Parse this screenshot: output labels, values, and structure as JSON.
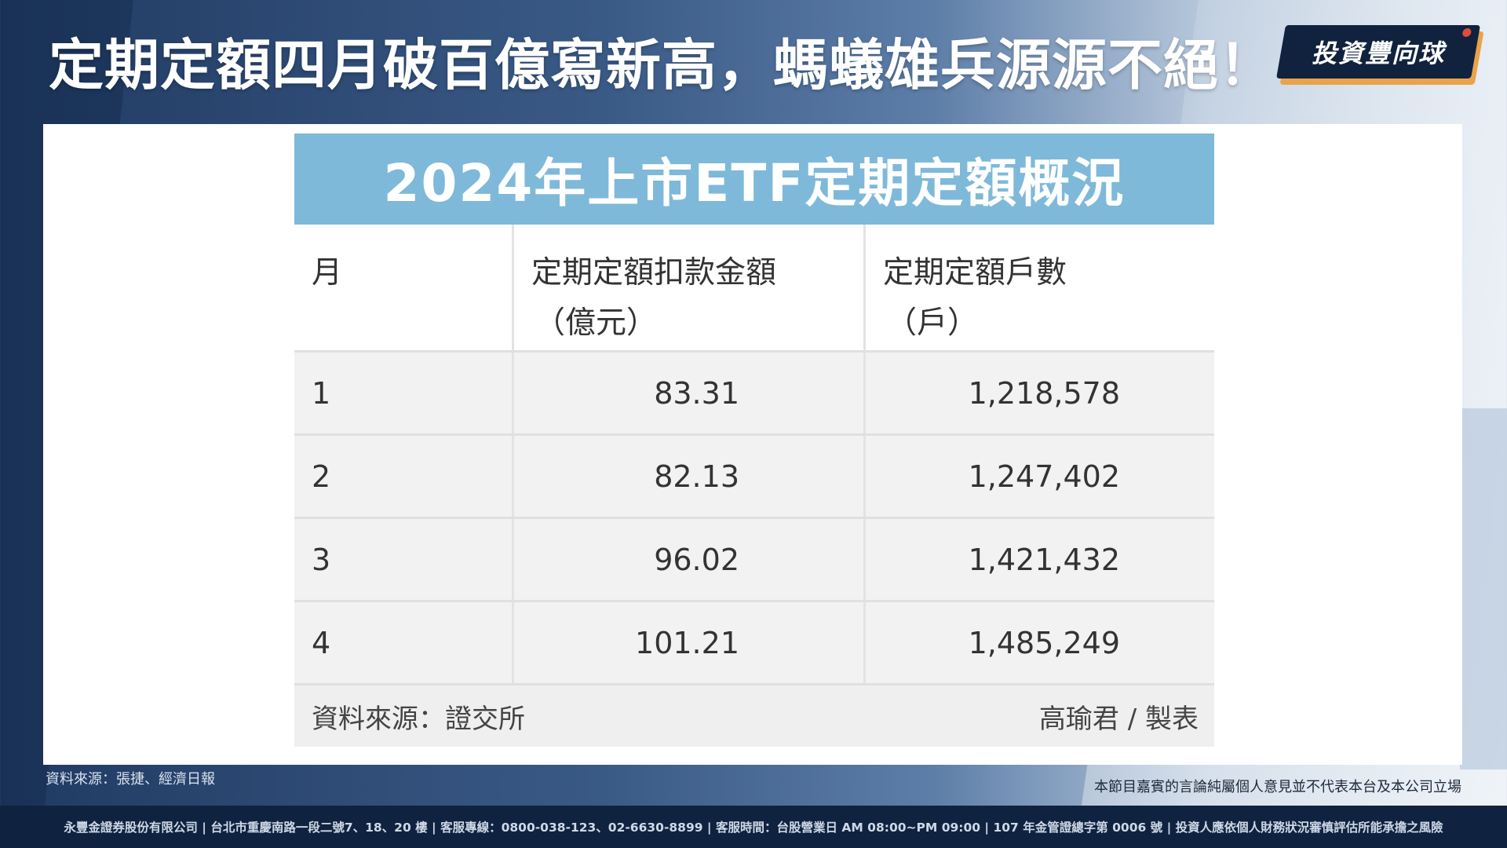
{
  "title": "定期定額四月破百億寫新高，螞蟻雄兵源源不絕！",
  "logo": "投資豐向球",
  "table": {
    "header": "2024年上市ETF定期定額概況",
    "columns": [
      {
        "label": "月",
        "sub": ""
      },
      {
        "label": "定期定額扣款金額",
        "sub": "（億元）"
      },
      {
        "label": "定期定額戶數",
        "sub": "（戶）"
      }
    ],
    "rows": [
      {
        "month": "1",
        "amount": "83.31",
        "accounts": "1,218,578"
      },
      {
        "month": "2",
        "amount": "82.13",
        "accounts": "1,247,402"
      },
      {
        "month": "3",
        "amount": "96.02",
        "accounts": "1,421,432"
      },
      {
        "month": "4",
        "amount": "101.21",
        "accounts": "1,485,249"
      }
    ],
    "source": "資料來源：證交所",
    "credit": "高瑜君 / 製表"
  },
  "source_note": "資料來源：張捷、經濟日報",
  "disclaimer": "本節目嘉賓的言論純屬個人意見並不代表本台及本公司立場",
  "bottom_bar": "永豐金證券股份有限公司 | 台北市重慶南路一段二號7、18、20 樓 | 客服專線：0800-038-123、02-6630-8899 | 客服時間：台股營業日 AM 08:00~PM 09:00 | 107 年金管證總字第 0006 號 | 投資人應依個人財務狀況審慎評估所能承擔之風險"
}
